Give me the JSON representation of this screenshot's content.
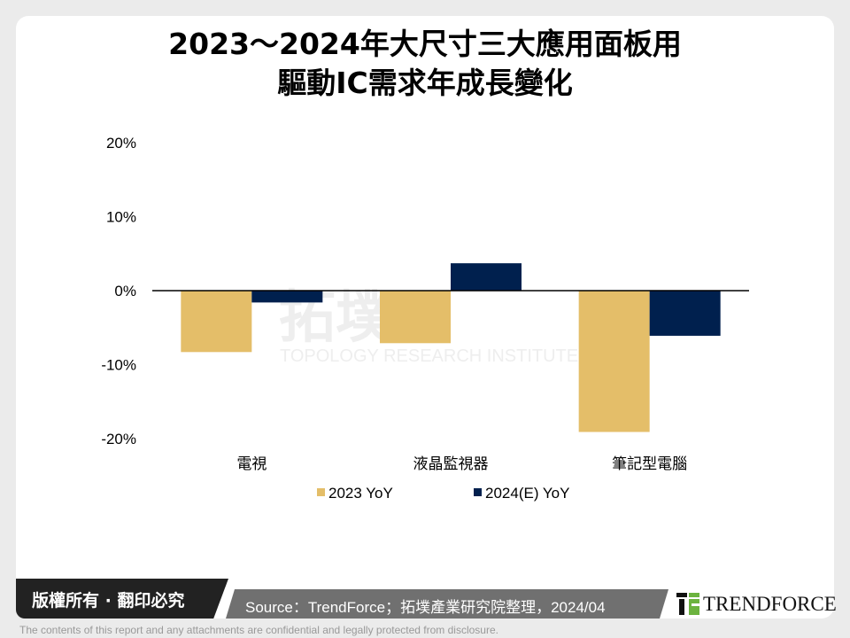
{
  "title_lines": [
    "2023～2024年大尺寸三大應用面板用",
    "驅動IC需求年成長變化"
  ],
  "chart_data": {
    "type": "bar",
    "categories": [
      "電視",
      "液晶監視器",
      "筆記型電腦"
    ],
    "series": [
      {
        "name": "2023 YoY",
        "values": [
          -8.3,
          -7.1,
          -19.1
        ],
        "color": "#e4be69"
      },
      {
        "name": "2024(E) YoY",
        "values": [
          -1.6,
          3.7,
          -6.1
        ],
        "color": "#00204e"
      }
    ],
    "ylim": [
      -20,
      20
    ],
    "yticks": [
      20,
      10,
      0,
      -10,
      -20
    ],
    "ytick_labels": [
      "20%",
      "10%",
      "0%",
      "-10%",
      "-20%"
    ],
    "grid": false,
    "legend": "bottom"
  },
  "watermark": {
    "cn": "拓墣",
    "en": "TOPOLOGY RESEARCH INSTITUTE"
  },
  "footer": {
    "copyright": "版權所有 · 翻印必究",
    "source": "Source：TrendForce；拓墣產業研究院整理，2024/04",
    "logo": "TRENDFORCE",
    "disclaimer": "The contents of this report and any attachments are confidential and legally protected from disclosure."
  }
}
